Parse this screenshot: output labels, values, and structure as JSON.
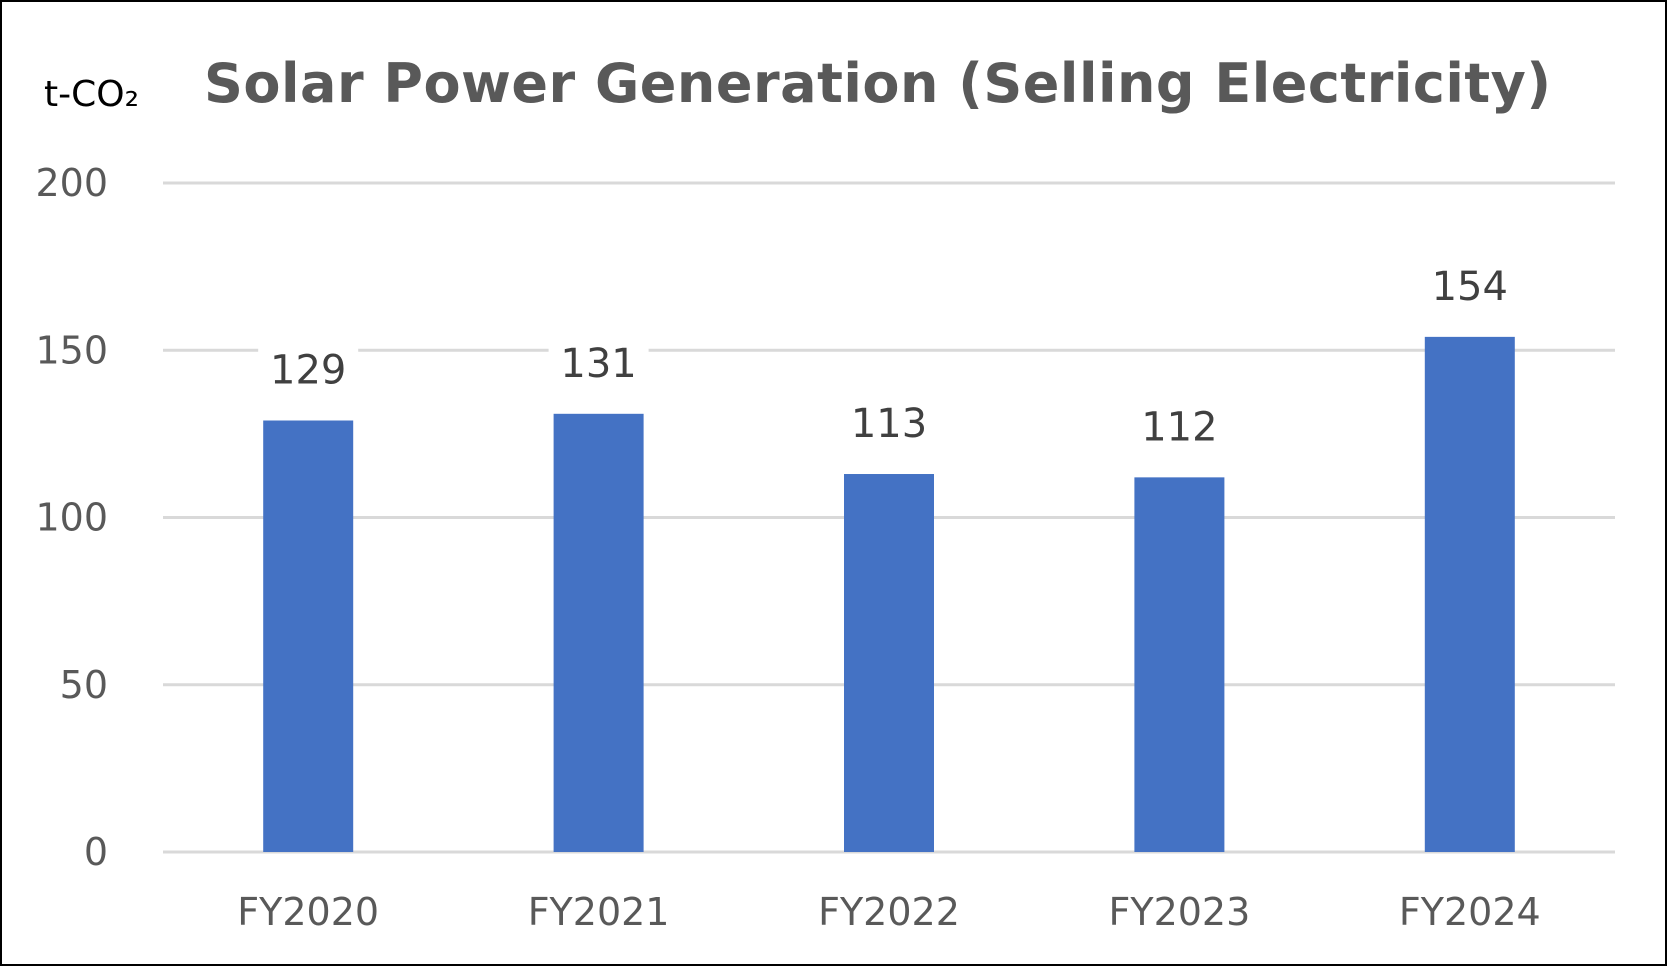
{
  "chart_data": {
    "type": "bar",
    "title": "Solar Power Generation (Selling Electricity)",
    "ylabel": "t-CO₂",
    "xlabel": "",
    "categories": [
      "FY2020",
      "FY2021",
      "FY2022",
      "FY2023",
      "FY2024"
    ],
    "values": [
      129,
      131,
      113,
      112,
      154
    ],
    "data_labels": [
      "129",
      "131",
      "113",
      "112",
      "154"
    ],
    "ylim": [
      0,
      200
    ],
    "yticks": [
      0,
      50,
      100,
      150,
      200
    ],
    "grid": true,
    "legend": "none",
    "bar_color": "#4472C4",
    "grid_color": "#D9D9D9"
  }
}
